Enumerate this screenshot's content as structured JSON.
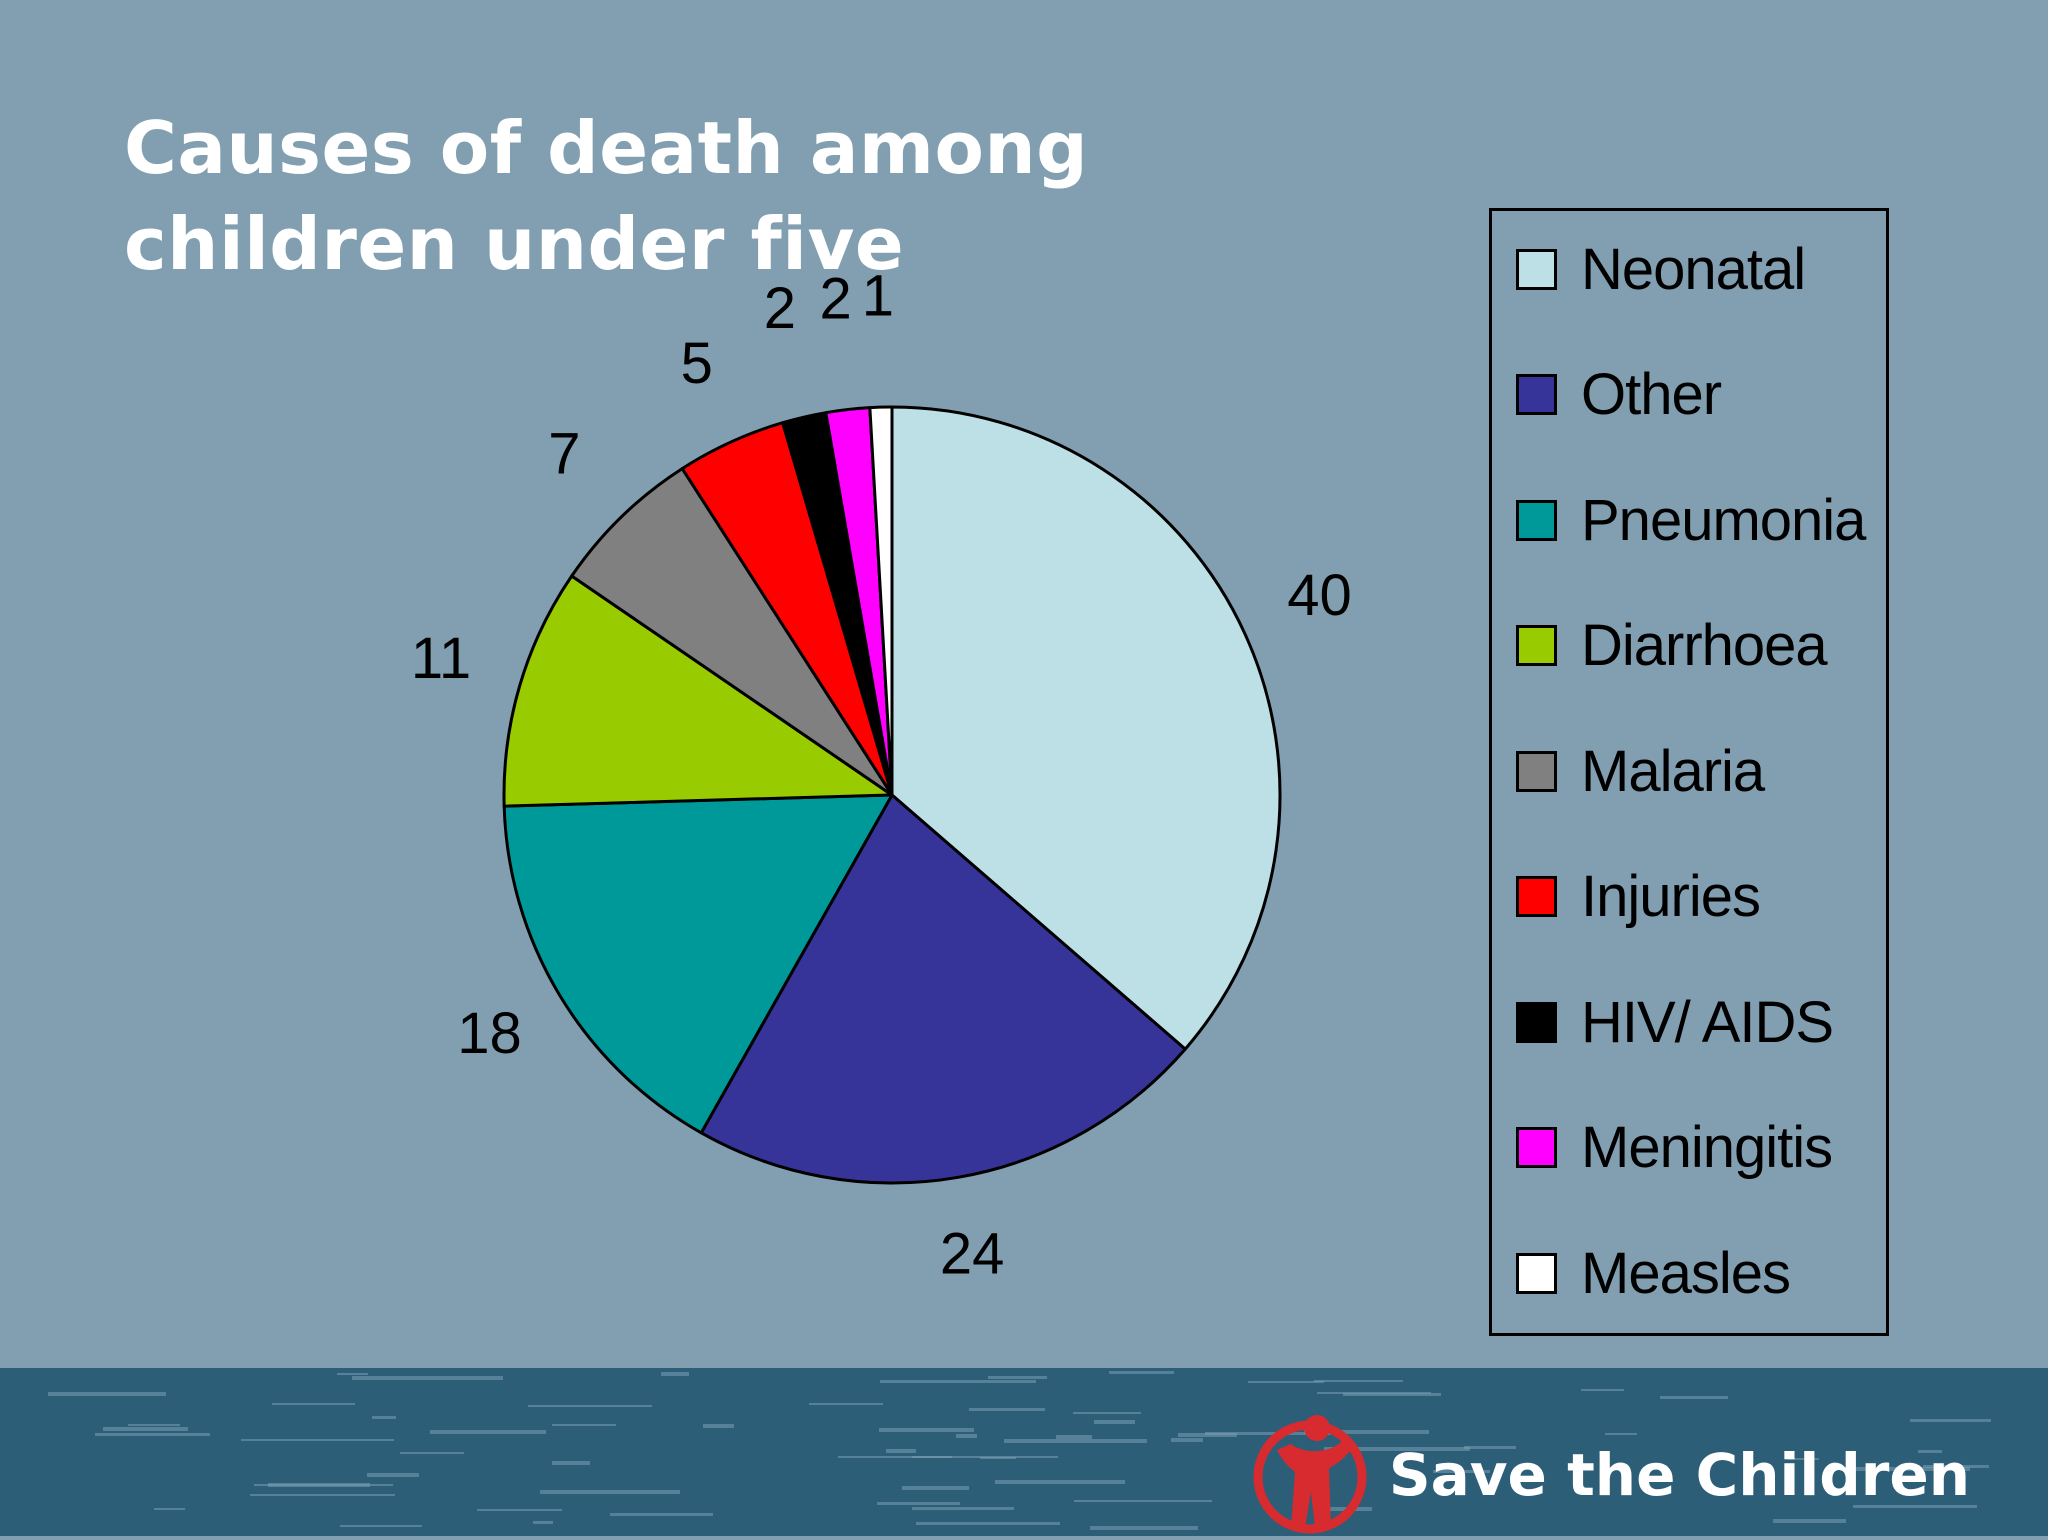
{
  "slide": {
    "title": "Causes of death among children under five",
    "brand_text": "Save the Children",
    "brand_color": "#d72b2f",
    "background_color": "#819fb0",
    "footer_color": "#2d5e78"
  },
  "chart_data": {
    "type": "pie",
    "title": "",
    "start_angle_deg": 0,
    "direction": "clockwise",
    "legend_position": "right",
    "slices": [
      {
        "label": "Neonatal",
        "value": 40,
        "color": "#bce0e5"
      },
      {
        "label": "Other",
        "value": 24,
        "color": "#363399"
      },
      {
        "label": "Pneumonia",
        "value": 18,
        "color": "#009999"
      },
      {
        "label": "Diarrhoea",
        "value": 11,
        "color": "#99cc00"
      },
      {
        "label": "Malaria",
        "value": 7,
        "color": "#808080"
      },
      {
        "label": "Injuries",
        "value": 5,
        "color": "#ff0000"
      },
      {
        "label": "HIV/ AIDS",
        "value": 2,
        "color": "#000000"
      },
      {
        "label": "Meningitis",
        "value": 2,
        "color": "#ff00ff"
      },
      {
        "label": "Measles",
        "value": 1,
        "color": "#ffffff"
      }
    ]
  }
}
